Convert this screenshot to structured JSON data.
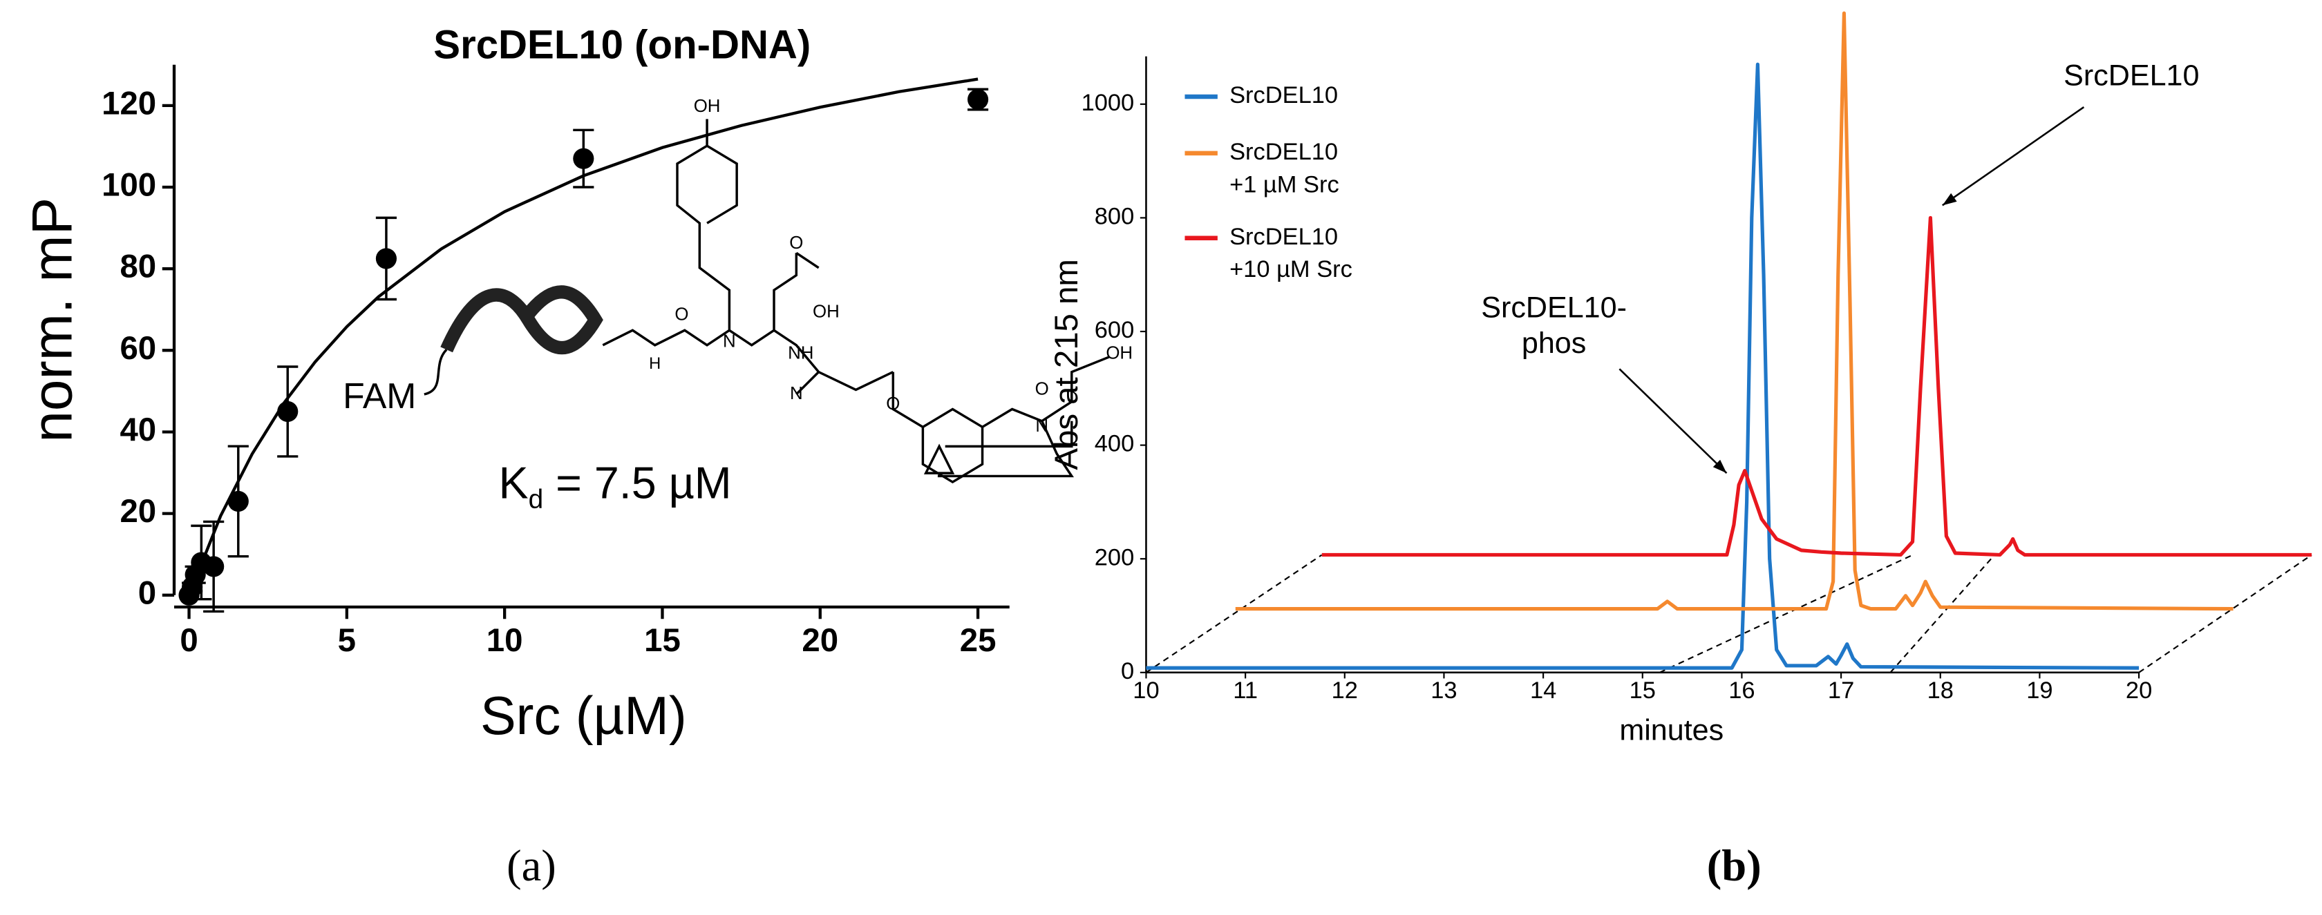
{
  "chart_data": [
    {
      "type": "scatter",
      "title": "SrcDEL10 (on-DNA)",
      "xlabel": "Src (µM)",
      "ylabel": "norm. mP",
      "x": [
        0,
        0.1,
        0.2,
        0.39,
        0.78,
        1.56,
        3.125,
        6.25,
        12.5,
        25
      ],
      "values": [
        0,
        2,
        5,
        8,
        7,
        23,
        45,
        82.5,
        107,
        121.5
      ],
      "errors": [
        0,
        1,
        2,
        9,
        11,
        13.5,
        11,
        10,
        7,
        2.5
      ],
      "fit": {
        "x": [
          0,
          1,
          2,
          3,
          4,
          5,
          6,
          8,
          10,
          12.5,
          15,
          17.5,
          20,
          22.5,
          25
        ],
        "y": [
          0,
          19.4,
          34.6,
          47.0,
          57.2,
          65.8,
          73.1,
          84.9,
          94.0,
          102.8,
          109.7,
          115.1,
          119.6,
          123.4,
          126.5
        ]
      },
      "color": "#000000",
      "xlim": [
        0,
        26
      ],
      "ylim": [
        0,
        130
      ],
      "xticks": [
        0,
        5,
        10,
        15,
        20,
        25
      ],
      "yticks": [
        0,
        20,
        40,
        60,
        80,
        100,
        120
      ],
      "annotation": {
        "symbol": "K",
        "subscript": "d",
        "text": " = 7.5 µM"
      },
      "structure_labels": [
        "FAM",
        "OH",
        "OH",
        "O",
        "H",
        "N",
        "N",
        "O",
        "NH",
        "O",
        "N",
        "O",
        "OH"
      ],
      "caption": "(a)"
    },
    {
      "type": "line",
      "xlabel": "minutes",
      "ylabel": "Abs at 215 nm",
      "xlim": [
        10,
        20
      ],
      "ylim": [
        0,
        1084
      ],
      "xticks": [
        10,
        11,
        12,
        13,
        14,
        15,
        16,
        17,
        18,
        19,
        20
      ],
      "yticks": [
        0,
        200,
        400,
        600,
        800,
        1000
      ],
      "series": [
        {
          "name": "SrcDEL10",
          "color": "#1f77c8",
          "x": [
            10,
            15.9,
            16.0,
            16.05,
            16.1,
            16.16,
            16.22,
            16.28,
            16.35,
            16.45,
            16.75,
            16.87,
            16.95,
            17.0,
            17.06,
            17.12,
            17.2,
            20
          ],
          "values": [
            8,
            8,
            40,
            300,
            800,
            1070,
            700,
            200,
            40,
            12,
            12,
            28,
            15,
            30,
            50,
            25,
            10,
            8
          ]
        },
        {
          "name": [
            "SrcDEL10",
            "+1 µM Src"
          ],
          "color": "#f5892e",
          "x": [
            10.9,
            15.15,
            15.25,
            15.35,
            16.85,
            16.92,
            16.97,
            17.03,
            17.09,
            17.14,
            17.2,
            17.3,
            17.55,
            17.65,
            17.72,
            17.8,
            17.85,
            17.92,
            18.0,
            20.95
          ],
          "values": [
            112,
            112,
            125,
            112,
            112,
            160,
            700,
            1160,
            650,
            180,
            118,
            112,
            112,
            135,
            118,
            140,
            160,
            135,
            115,
            112
          ]
        },
        {
          "name": [
            "SrcDEL10",
            "+10 µM Src"
          ],
          "color": "#e8171e",
          "x": [
            11.77,
            15.85,
            15.92,
            15.97,
            16.03,
            16.1,
            16.2,
            16.35,
            16.6,
            16.8,
            17.0,
            17.6,
            17.72,
            17.8,
            17.9,
            17.98,
            18.06,
            18.15,
            18.6,
            18.7,
            18.73,
            18.78,
            18.85,
            21.74
          ],
          "values": [
            207,
            207,
            260,
            330,
            355,
            320,
            270,
            235,
            215,
            212,
            210,
            207,
            230,
            500,
            800,
            500,
            240,
            210,
            207,
            225,
            235,
            215,
            207,
            207
          ]
        }
      ],
      "annotations": [
        {
          "lines": [
            "SrcDEL10"
          ]
        },
        {
          "lines": [
            "SrcDEL10-",
            "phos"
          ]
        }
      ],
      "caption": "(b)"
    }
  ]
}
